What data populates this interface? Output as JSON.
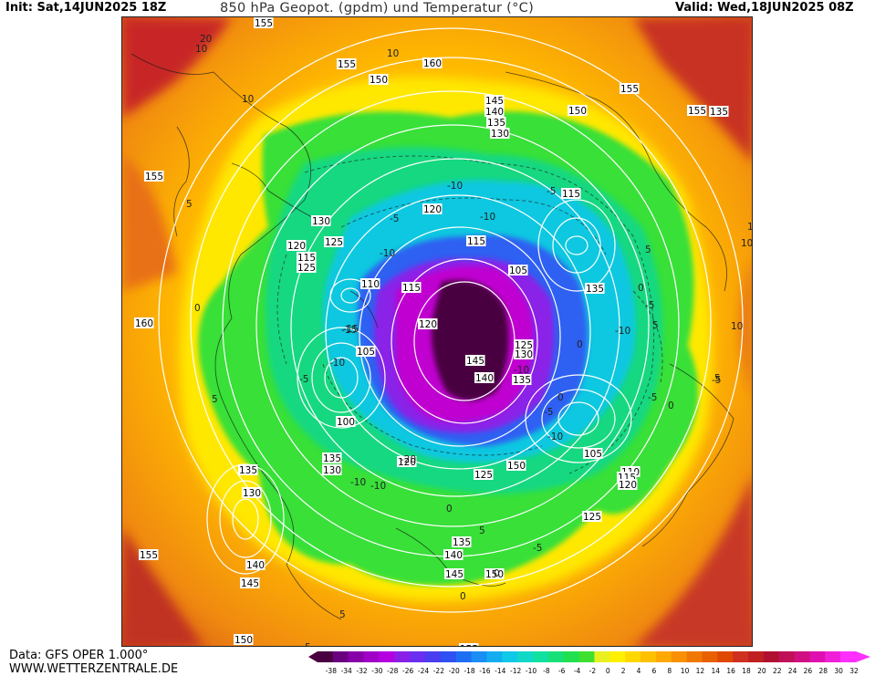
{
  "header": {
    "init": "Init: Sat,14JUN2025 18Z",
    "title": "850 hPa Geopot. (gpdm) und Temperatur (°C)",
    "valid": "Valid: Wed,18JUN2025 08Z"
  },
  "footer": {
    "data_source": "Data: GFS OPER 1.000°",
    "website": "WWW.WETTERZENTRALE.DE"
  },
  "legend": {
    "ticks": [
      "-38",
      "-34",
      "-32",
      "-30",
      "-28",
      "-26",
      "-24",
      "-22",
      "-20",
      "-18",
      "-16",
      "-14",
      "-12",
      "-10",
      "-8",
      "-6",
      "-4",
      "-2",
      "0",
      "2",
      "4",
      "6",
      "8",
      "10",
      "12",
      "14",
      "16",
      "18",
      "20",
      "22",
      "24",
      "26",
      "28",
      "30",
      "32"
    ],
    "colors": [
      "#4a0040",
      "#6a0080",
      "#8800a8",
      "#a000c8",
      "#b400e0",
      "#8a20e8",
      "#6a2ef0",
      "#4a3cf0",
      "#2f50f2",
      "#1e6ef4",
      "#1a8ef4",
      "#14aef0",
      "#10c8e8",
      "#10d8c8",
      "#10e0a0",
      "#18e078",
      "#20e050",
      "#40e030",
      "#e8f020",
      "#fff000",
      "#ffd800",
      "#ffc000",
      "#ffa800",
      "#f89000",
      "#f07800",
      "#e86000",
      "#e04800",
      "#d03020",
      "#c02020",
      "#b01030",
      "#c01058",
      "#d01080",
      "#e010b0",
      "#f020d8",
      "#ff30ff"
    ]
  },
  "map": {
    "geopotential_labels": [
      {
        "text": "155"
      },
      {
        "text": "150"
      },
      {
        "text": "160"
      },
      {
        "text": "155"
      },
      {
        "text": "155"
      },
      {
        "text": "140"
      },
      {
        "text": "145"
      },
      {
        "text": "135"
      },
      {
        "text": "130"
      },
      {
        "text": "150"
      },
      {
        "text": "155"
      },
      {
        "text": "135"
      },
      {
        "text": "130"
      },
      {
        "text": "125"
      },
      {
        "text": "120"
      },
      {
        "text": "115"
      },
      {
        "text": "125"
      },
      {
        "text": "120"
      },
      {
        "text": "115"
      },
      {
        "text": "115"
      },
      {
        "text": "105"
      },
      {
        "text": "110"
      },
      {
        "text": "115"
      },
      {
        "text": "120"
      },
      {
        "text": "160"
      },
      {
        "text": "105"
      },
      {
        "text": "125"
      },
      {
        "text": "130"
      },
      {
        "text": "145"
      },
      {
        "text": "140"
      },
      {
        "text": "135"
      },
      {
        "text": "100"
      },
      {
        "text": "120"
      },
      {
        "text": "150"
      },
      {
        "text": "125"
      },
      {
        "text": "135"
      },
      {
        "text": "130"
      },
      {
        "text": "135"
      },
      {
        "text": "130"
      },
      {
        "text": "105"
      },
      {
        "text": "110"
      },
      {
        "text": "115"
      },
      {
        "text": "120"
      },
      {
        "text": "125"
      },
      {
        "text": "140"
      },
      {
        "text": "145"
      },
      {
        "text": "135"
      },
      {
        "text": "140"
      },
      {
        "text": "145"
      },
      {
        "text": "150"
      },
      {
        "text": "150"
      },
      {
        "text": "155"
      },
      {
        "text": "155"
      },
      {
        "text": "155"
      },
      {
        "text": "135"
      }
    ],
    "temperature_labels": [
      {
        "text": "20"
      },
      {
        "text": "10"
      },
      {
        "text": "10"
      },
      {
        "text": "5"
      },
      {
        "text": "0"
      },
      {
        "text": "-5"
      },
      {
        "text": "-10"
      },
      {
        "text": "-10"
      },
      {
        "text": "-5"
      },
      {
        "text": "-10"
      },
      {
        "text": "-15"
      },
      {
        "text": "-10"
      },
      {
        "text": "-5"
      },
      {
        "text": "0"
      },
      {
        "text": "5"
      },
      {
        "text": "10"
      },
      {
        "text": "5"
      },
      {
        "text": "0"
      },
      {
        "text": "-5"
      },
      {
        "text": "-10"
      },
      {
        "text": "-5"
      },
      {
        "text": "0"
      },
      {
        "text": "5"
      },
      {
        "text": "10"
      },
      {
        "text": "-10"
      },
      {
        "text": "-5"
      },
      {
        "text": "-10"
      },
      {
        "text": "0"
      },
      {
        "text": "5"
      },
      {
        "text": "-5"
      },
      {
        "text": "0"
      },
      {
        "text": "5"
      },
      {
        "text": "-20"
      },
      {
        "text": "-10"
      },
      {
        "text": "-10"
      },
      {
        "text": "0"
      },
      {
        "text": "5"
      },
      {
        "text": "10"
      },
      {
        "text": "10"
      },
      {
        "text": "-15"
      },
      {
        "text": "-5"
      },
      {
        "text": "0"
      },
      {
        "text": "5"
      }
    ]
  }
}
